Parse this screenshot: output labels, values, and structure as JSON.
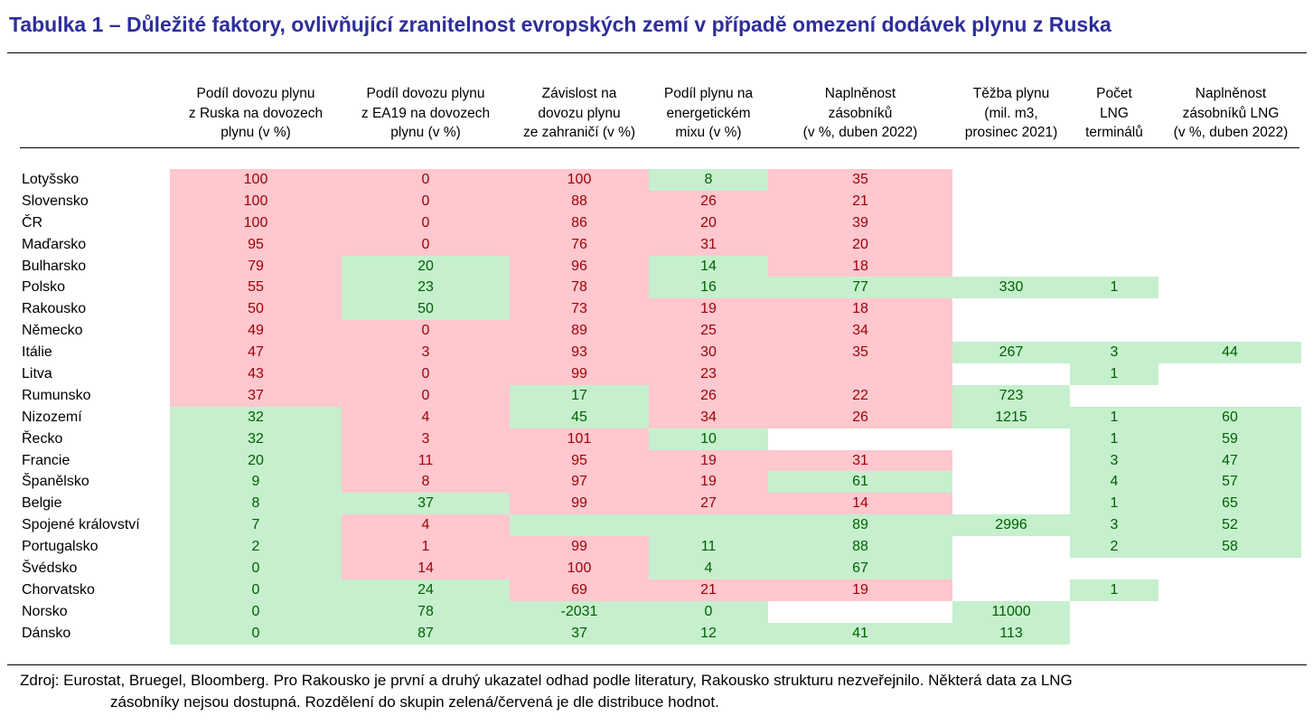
{
  "title": "Tabulka 1 – Důležité faktory, ovlivňující zranitelnost evropských zemí v případě omezení dodávek plynu z Ruska",
  "columns": [
    "Podíl dovozu plynu\nz Ruska na dovozech\nplynu (v %)",
    "Podíl dovozu plynu\nz EA19 na dovozech\nplynu (v %)",
    "Závislost na\ndovozu plynu\nze zahraničí (v %)",
    "Podíl plynu na\nenergetickém\nmixu (v %)",
    "Naplněnost\nzásobníků\n(v %, duben 2022)",
    "Těžba plynu\n(mil. m3,\nprosinec 2021)",
    "Počet\nLNG\nterminálů",
    "Naplněnost\nzásobníků LNG\n(v %, duben 2022)"
  ],
  "colors": {
    "red_bg": "#ffc7ce",
    "red_text": "#9c0006",
    "green_bg": "#c6efce",
    "green_text": "#006100",
    "title": "#2e2e9a"
  },
  "rows": [
    {
      "country": "Lotyšsko",
      "cells": [
        [
          "100",
          "r"
        ],
        [
          "0",
          "r"
        ],
        [
          "100",
          "r"
        ],
        [
          "8",
          "g"
        ],
        [
          "35",
          "r"
        ],
        [
          "",
          "w"
        ],
        [
          "",
          "w"
        ],
        [
          "",
          "w"
        ]
      ]
    },
    {
      "country": "Slovensko",
      "cells": [
        [
          "100",
          "r"
        ],
        [
          "0",
          "r"
        ],
        [
          "88",
          "r"
        ],
        [
          "26",
          "r"
        ],
        [
          "21",
          "r"
        ],
        [
          "",
          "w"
        ],
        [
          "",
          "w"
        ],
        [
          "",
          "w"
        ]
      ]
    },
    {
      "country": "ČR",
      "cells": [
        [
          "100",
          "r"
        ],
        [
          "0",
          "r"
        ],
        [
          "86",
          "r"
        ],
        [
          "20",
          "r"
        ],
        [
          "39",
          "r"
        ],
        [
          "",
          "w"
        ],
        [
          "",
          "w"
        ],
        [
          "",
          "w"
        ]
      ]
    },
    {
      "country": "Maďarsko",
      "cells": [
        [
          "95",
          "r"
        ],
        [
          "0",
          "r"
        ],
        [
          "76",
          "r"
        ],
        [
          "31",
          "r"
        ],
        [
          "20",
          "r"
        ],
        [
          "",
          "w"
        ],
        [
          "",
          "w"
        ],
        [
          "",
          "w"
        ]
      ]
    },
    {
      "country": "Bulharsko",
      "cells": [
        [
          "79",
          "r"
        ],
        [
          "20",
          "g"
        ],
        [
          "96",
          "r"
        ],
        [
          "14",
          "g"
        ],
        [
          "18",
          "r"
        ],
        [
          "",
          "w"
        ],
        [
          "",
          "w"
        ],
        [
          "",
          "w"
        ]
      ]
    },
    {
      "country": "Polsko",
      "cells": [
        [
          "55",
          "r"
        ],
        [
          "23",
          "g"
        ],
        [
          "78",
          "r"
        ],
        [
          "16",
          "g"
        ],
        [
          "77",
          "g"
        ],
        [
          "330",
          "g"
        ],
        [
          "1",
          "g"
        ],
        [
          "",
          "w"
        ]
      ]
    },
    {
      "country": "Rakousko",
      "cells": [
        [
          "50",
          "r"
        ],
        [
          "50",
          "g"
        ],
        [
          "73",
          "r"
        ],
        [
          "19",
          "r"
        ],
        [
          "18",
          "r"
        ],
        [
          "",
          "w"
        ],
        [
          "",
          "w"
        ],
        [
          "",
          "w"
        ]
      ]
    },
    {
      "country": "Německo",
      "cells": [
        [
          "49",
          "r"
        ],
        [
          "0",
          "r"
        ],
        [
          "89",
          "r"
        ],
        [
          "25",
          "r"
        ],
        [
          "34",
          "r"
        ],
        [
          "",
          "w"
        ],
        [
          "",
          "w"
        ],
        [
          "",
          "w"
        ]
      ]
    },
    {
      "country": "Itálie",
      "cells": [
        [
          "47",
          "r"
        ],
        [
          "3",
          "r"
        ],
        [
          "93",
          "r"
        ],
        [
          "30",
          "r"
        ],
        [
          "35",
          "r"
        ],
        [
          "267",
          "g"
        ],
        [
          "3",
          "g"
        ],
        [
          "44",
          "g"
        ]
      ]
    },
    {
      "country": "Litva",
      "cells": [
        [
          "43",
          "r"
        ],
        [
          "0",
          "r"
        ],
        [
          "99",
          "r"
        ],
        [
          "23",
          "r"
        ],
        [
          "",
          "r"
        ],
        [
          "",
          "w"
        ],
        [
          "1",
          "g"
        ],
        [
          "",
          "w"
        ]
      ]
    },
    {
      "country": "Rumunsko",
      "cells": [
        [
          "37",
          "r"
        ],
        [
          "0",
          "r"
        ],
        [
          "17",
          "g"
        ],
        [
          "26",
          "r"
        ],
        [
          "22",
          "r"
        ],
        [
          "723",
          "g"
        ],
        [
          "",
          "w"
        ],
        [
          "",
          "w"
        ]
      ]
    },
    {
      "country": "Nizozemí",
      "cells": [
        [
          "32",
          "g"
        ],
        [
          "4",
          "r"
        ],
        [
          "45",
          "g"
        ],
        [
          "34",
          "r"
        ],
        [
          "26",
          "r"
        ],
        [
          "1215",
          "g"
        ],
        [
          "1",
          "g"
        ],
        [
          "60",
          "g"
        ]
      ]
    },
    {
      "country": "Řecko",
      "cells": [
        [
          "32",
          "g"
        ],
        [
          "3",
          "r"
        ],
        [
          "101",
          "r"
        ],
        [
          "10",
          "g"
        ],
        [
          "",
          "w"
        ],
        [
          "",
          "w"
        ],
        [
          "1",
          "g"
        ],
        [
          "59",
          "g"
        ]
      ]
    },
    {
      "country": "Francie",
      "cells": [
        [
          "20",
          "g"
        ],
        [
          "11",
          "r"
        ],
        [
          "95",
          "r"
        ],
        [
          "19",
          "r"
        ],
        [
          "31",
          "r"
        ],
        [
          "",
          "w"
        ],
        [
          "3",
          "g"
        ],
        [
          "47",
          "g"
        ]
      ]
    },
    {
      "country": "Španělsko",
      "cells": [
        [
          "9",
          "g"
        ],
        [
          "8",
          "r"
        ],
        [
          "97",
          "r"
        ],
        [
          "19",
          "r"
        ],
        [
          "61",
          "g"
        ],
        [
          "",
          "w"
        ],
        [
          "4",
          "g"
        ],
        [
          "57",
          "g"
        ]
      ]
    },
    {
      "country": "Belgie",
      "cells": [
        [
          "8",
          "g"
        ],
        [
          "37",
          "g"
        ],
        [
          "99",
          "r"
        ],
        [
          "27",
          "r"
        ],
        [
          "14",
          "r"
        ],
        [
          "",
          "w"
        ],
        [
          "1",
          "g"
        ],
        [
          "65",
          "g"
        ]
      ]
    },
    {
      "country": "Spojené království",
      "cells": [
        [
          "7",
          "g"
        ],
        [
          "4",
          "r"
        ],
        [
          "",
          "g"
        ],
        [
          "",
          "g"
        ],
        [
          "89",
          "g"
        ],
        [
          "2996",
          "g"
        ],
        [
          "3",
          "g"
        ],
        [
          "52",
          "g"
        ]
      ]
    },
    {
      "country": "Portugalsko",
      "cells": [
        [
          "2",
          "g"
        ],
        [
          "1",
          "r"
        ],
        [
          "99",
          "r"
        ],
        [
          "11",
          "g"
        ],
        [
          "88",
          "g"
        ],
        [
          "",
          "w"
        ],
        [
          "2",
          "g"
        ],
        [
          "58",
          "g"
        ]
      ]
    },
    {
      "country": "Švédsko",
      "cells": [
        [
          "0",
          "g"
        ],
        [
          "14",
          "r"
        ],
        [
          "100",
          "r"
        ],
        [
          "4",
          "g"
        ],
        [
          "67",
          "g"
        ],
        [
          "",
          "w"
        ],
        [
          "",
          "w"
        ],
        [
          "",
          "w"
        ]
      ]
    },
    {
      "country": "Chorvatsko",
      "cells": [
        [
          "0",
          "g"
        ],
        [
          "24",
          "g"
        ],
        [
          "69",
          "r"
        ],
        [
          "21",
          "r"
        ],
        [
          "19",
          "r"
        ],
        [
          "",
          "w"
        ],
        [
          "1",
          "g"
        ],
        [
          "",
          "w"
        ]
      ]
    },
    {
      "country": "Norsko",
      "cells": [
        [
          "0",
          "g"
        ],
        [
          "78",
          "g"
        ],
        [
          "-2031",
          "g"
        ],
        [
          "0",
          "g"
        ],
        [
          "",
          "w"
        ],
        [
          "11000",
          "g"
        ],
        [
          "",
          "w"
        ],
        [
          "",
          "w"
        ]
      ]
    },
    {
      "country": "Dánsko",
      "cells": [
        [
          "0",
          "g"
        ],
        [
          "87",
          "g"
        ],
        [
          "37",
          "g"
        ],
        [
          "12",
          "g"
        ],
        [
          "41",
          "g"
        ],
        [
          "113",
          "g"
        ],
        [
          "",
          "w"
        ],
        [
          "",
          "w"
        ]
      ]
    }
  ],
  "source": {
    "line1": "Zdroj: Eurostat, Bruegel, Bloomberg. Pro Rakousko je první a druhý ukazatel odhad podle literatury, Rakousko strukturu nezveřejnilo. Některá data za LNG",
    "line2": "zásobníky nejsou dostupná. Rozdělení do skupin zelená/červená je dle distribuce hodnot."
  }
}
